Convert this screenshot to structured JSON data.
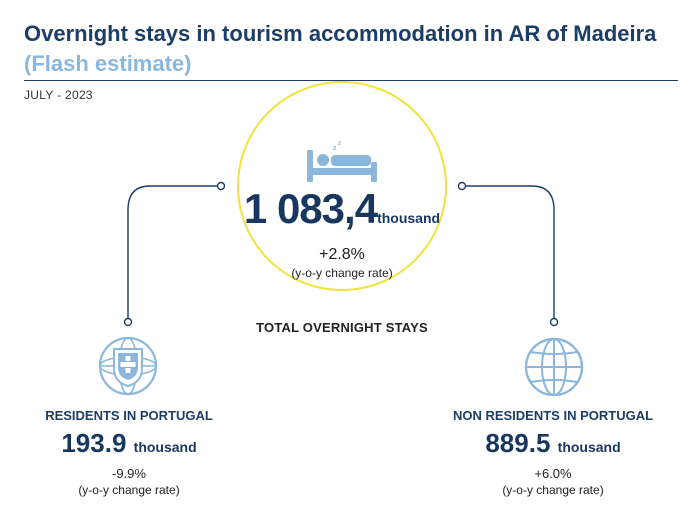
{
  "header": {
    "title": "Overnight stays in tourism accommodation in AR of Madeira",
    "subtitle": "(Flash estimate)",
    "period": "JULY - 2023"
  },
  "chart_data": {
    "type": "infographic",
    "unit": "thousand",
    "total": {
      "label": "TOTAL OVERNIGHT STAYS",
      "value_text": "1 083,4",
      "value": 1083.4,
      "unit": "thousand",
      "change_text": "+2.8%",
      "change": 2.8,
      "change_note": "(y-o-y change rate)"
    },
    "breakdown": [
      {
        "label": "RESIDENTS IN PORTUGAL",
        "value_text": "193.9",
        "value": 193.9,
        "unit": "thousand",
        "change_text": "-9.9%",
        "change": -9.9,
        "change_note": "(y-o-y change rate)"
      },
      {
        "label": "NON RESIDENTS IN PORTUGAL",
        "value_text": "889.5",
        "value": 889.5,
        "unit": "thousand",
        "change_text": "+6.0%",
        "change": 6.0,
        "change_note": "(y-o-y change rate)"
      }
    ]
  },
  "colors": {
    "primary": "#17375e",
    "accent_light": "#8cb7dc",
    "circle": "#f2e23c",
    "icon": "#8cb7dc"
  },
  "icons": {
    "total": "sleeping-bed-icon",
    "residents": "portugal-coat-of-arms-icon",
    "non_residents": "globe-icon"
  }
}
